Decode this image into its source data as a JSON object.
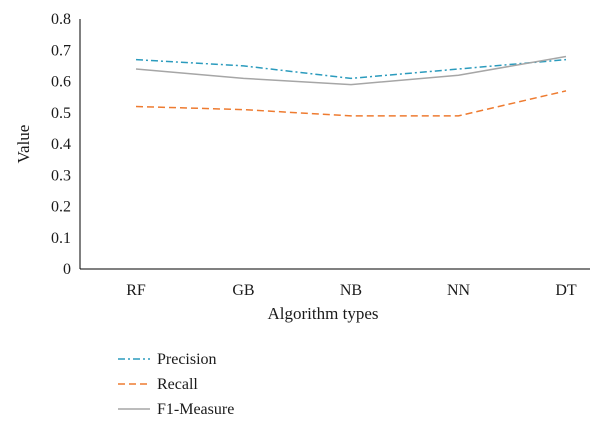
{
  "chart_data": {
    "type": "line",
    "categories": [
      "RF",
      "GB",
      "NB",
      "NN",
      "DT"
    ],
    "series": [
      {
        "name": "Precision",
        "values": [
          0.67,
          0.65,
          0.61,
          0.64,
          0.67
        ],
        "color": "#2b9bbd",
        "dash": "dash-dot"
      },
      {
        "name": "Recall",
        "values": [
          0.52,
          0.51,
          0.49,
          0.49,
          0.57
        ],
        "color": "#ee7b30",
        "dash": "dashed"
      },
      {
        "name": "F1-Measure",
        "values": [
          0.64,
          0.61,
          0.59,
          0.62,
          0.68
        ],
        "color": "#a6a6a6",
        "dash": "solid"
      }
    ],
    "xlabel": "Algorithm types",
    "ylabel": "Value",
    "ylim": [
      0,
      0.8
    ],
    "yticks": [
      "0",
      "0.1",
      "0.2",
      "0.3",
      "0.4",
      "0.5",
      "0.6",
      "0.7",
      "0.8"
    ],
    "grid": false,
    "legend_position": "bottom-left"
  }
}
